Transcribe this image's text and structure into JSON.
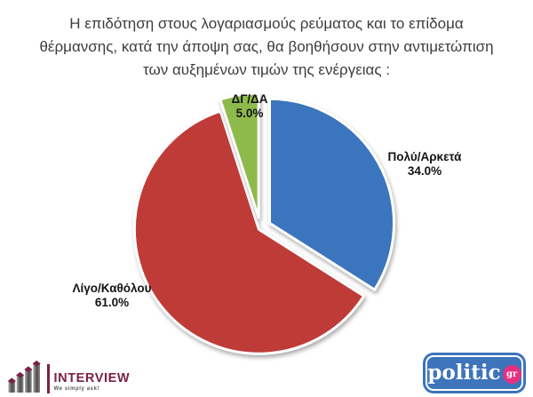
{
  "page": {
    "background": "#ffffff"
  },
  "title": {
    "lines": [
      "Η επιδότηση στους λογαριασμούς ρεύματος και το επίδομα",
      "θέρμανσης, κατά την άποψη σας, θα βοηθήσουν στην αντιμετώπιση",
      "των αυξημένων τιμών της ενέργειας :"
    ],
    "full_text": "Η επιδότηση στους λογαριασμούς ρεύματος και το επίδομα θέρμανσης, κατά την άποψη σας, θα βοηθήσουν στην αντιμετώπιση των αυξημένων τιμών της ενέργειας :"
  },
  "chart_data": {
    "type": "pie",
    "title": "Η επιδότηση στους λογαριασμούς ρεύματος και το επίδομα θέρμανσης, κατά την άποψη σας, θα βοηθήσουν στην αντιμετώπιση των αυξημένων τιμών της ενέργειας :",
    "unit": "%",
    "slices": [
      {
        "key": "poly-arketa",
        "label": "Πολύ/Αρκετά",
        "pct_label": "34.0%",
        "value": 34.0,
        "color": "#3b74bd",
        "explode": 12
      },
      {
        "key": "ligo-katholou",
        "label": "Λίγο/Καθόλου",
        "pct_label": "61.0%",
        "value": 61.0,
        "color": "#bf3a38",
        "explode": 2
      },
      {
        "key": "dg-da",
        "label": "ΔΓ/ΔΑ",
        "pct_label": "5.0%",
        "value": 5.0,
        "color": "#8eba4b",
        "explode": 12
      }
    ],
    "layout": {
      "center": [
        293,
        257
      ],
      "radius": 140,
      "start_angle_deg": -90,
      "direction": "clockwise",
      "slice_border_color": "#ffffff",
      "slice_border_width": 3,
      "legend": "none",
      "labels": "outside-bold"
    }
  },
  "footer": {
    "interview_logo": {
      "name": "INTERVIEW",
      "tagline": "We simply ask!",
      "brand_color": "#7a2145",
      "bar_color": "#6e6e6e"
    },
    "politic_logo": {
      "name": "politic",
      "suffix": "gr",
      "bg_color": "#3d74bb",
      "badge_color": "#e5317f",
      "text_color": "#ffffff"
    }
  }
}
